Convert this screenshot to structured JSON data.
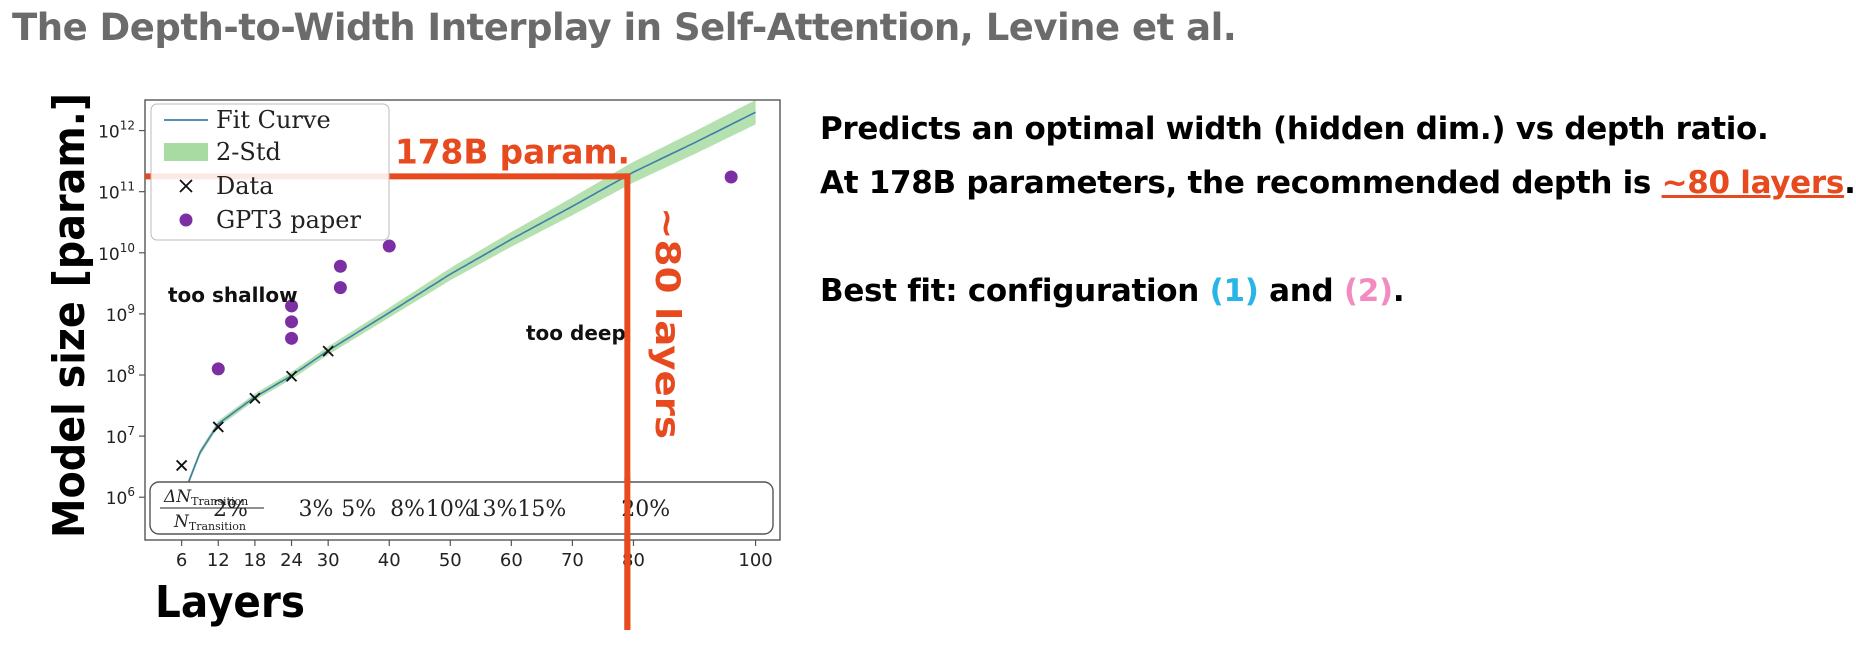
{
  "slide": {
    "title": "The Depth-to-Width Interplay in Self-Attention, Levine et al."
  },
  "text": {
    "line1": "Predicts an optimal width (hidden dim.) vs depth ratio.",
    "line2_prefix": "At 178B parameters, the recommended depth is ",
    "line2_highlight": "~80 layers",
    "line2_suffix": ".",
    "line3_prefix": "Best fit: configuration ",
    "config1": "(1)",
    "line3_and": " and ",
    "config2": "(2)",
    "line3_suffix": "."
  },
  "colors": {
    "accent_red": "#e84a1f",
    "config1": "#29b6e6",
    "config2": "#f28cc0",
    "fit_curve": "#3d7fa8",
    "band": "#a8dba2",
    "gpt3": "#7b2fa3"
  },
  "chart_data": {
    "type": "line",
    "title": "",
    "xlabel": "Layers",
    "ylabel": "Model size [param.]",
    "xlim": [
      0,
      104
    ],
    "ylim_log10": [
      5.3,
      12.5
    ],
    "y_scale": "log",
    "x_ticks": [
      6,
      12,
      18,
      24,
      30,
      40,
      50,
      60,
      70,
      80,
      100
    ],
    "y_ticks": [
      {
        "value": 6,
        "label": "10",
        "exp": "6"
      },
      {
        "value": 7,
        "label": "10",
        "exp": "7"
      },
      {
        "value": 8,
        "label": "10",
        "exp": "8"
      },
      {
        "value": 9,
        "label": "10",
        "exp": "9"
      },
      {
        "value": 10,
        "label": "10",
        "exp": "10"
      },
      {
        "value": 11,
        "label": "10",
        "exp": "11"
      },
      {
        "value": 12,
        "label": "10",
        "exp": "12"
      }
    ],
    "legend": {
      "position": "top-left",
      "entries": [
        "Fit Curve",
        "2-Std",
        "Data",
        "GPT3 paper"
      ]
    },
    "fit_curve": {
      "name": "Fit Curve",
      "x": [
        6,
        9,
        12,
        18,
        24,
        30,
        40,
        50,
        60,
        70,
        80,
        90,
        100
      ],
      "log10y": [
        5.95,
        6.73,
        7.2,
        7.64,
        7.99,
        8.4,
        9.02,
        9.65,
        10.22,
        10.76,
        11.32,
        11.8,
        12.3
      ]
    },
    "band": {
      "name": "2-Std",
      "x": [
        6,
        12,
        24,
        40,
        60,
        80,
        100
      ],
      "half_width": [
        0.05,
        0.05,
        0.06,
        0.08,
        0.12,
        0.17,
        0.2
      ]
    },
    "data_points": {
      "name": "Data",
      "x": [
        6,
        12,
        18,
        24,
        30
      ],
      "log10y": [
        6.52,
        7.15,
        7.62,
        7.98,
        8.39
      ]
    },
    "gpt3_points": {
      "name": "GPT3 paper",
      "x": [
        12,
        24,
        24,
        24,
        32,
        32,
        40,
        96
      ],
      "log10y": [
        8.1,
        8.6,
        8.87,
        9.13,
        9.43,
        9.78,
        10.11,
        11.24
      ]
    },
    "annotations": {
      "too_shallow": "too shallow",
      "too_deep": "too deep",
      "param_label": "178B param.",
      "layers_label": "~80 layers",
      "param_log10": 11.25,
      "layers_x": 79
    },
    "transition_row": {
      "fraction_label": {
        "num": "ΔN",
        "num_sub": "Transition",
        "den": "N",
        "den_sub": "Transition"
      },
      "entries": [
        {
          "x": 14,
          "label": "2%"
        },
        {
          "x": 28,
          "label": "3%"
        },
        {
          "x": 35,
          "label": "5%"
        },
        {
          "x": 43,
          "label": "8%"
        },
        {
          "x": 50,
          "label": "10%"
        },
        {
          "x": 57,
          "label": "13%"
        },
        {
          "x": 65,
          "label": "15%"
        },
        {
          "x": 82,
          "label": "20%"
        }
      ]
    }
  }
}
